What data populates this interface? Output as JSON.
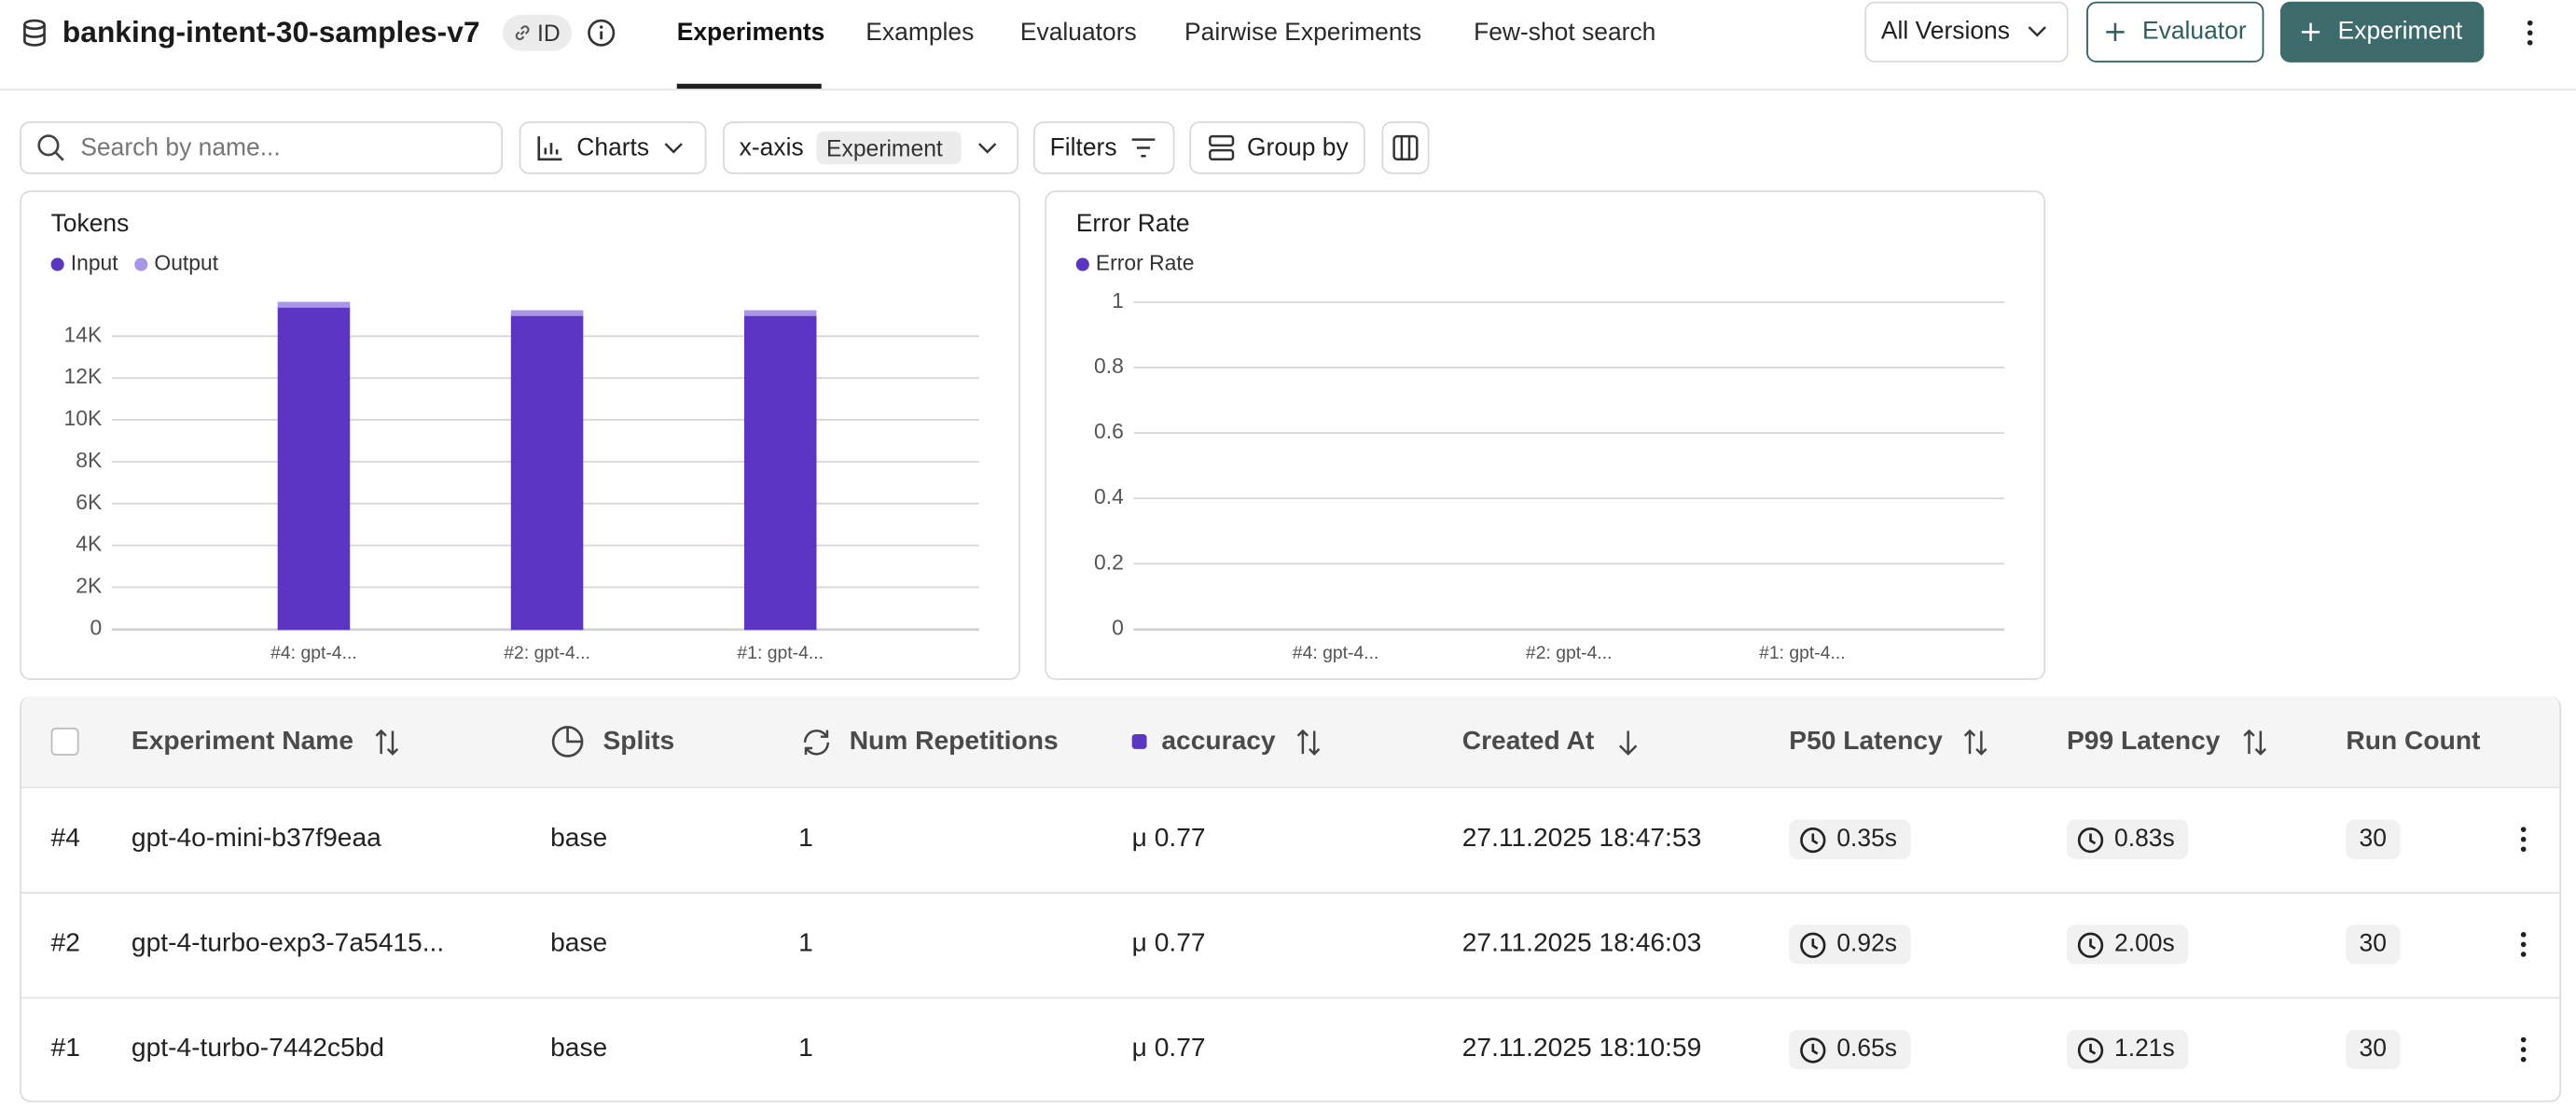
{
  "header": {
    "title": "banking-intent-30-samples-v7",
    "id_badge": "ID",
    "tabs": [
      "Experiments",
      "Examples",
      "Evaluators",
      "Pairwise Experiments",
      "Few-shot search"
    ],
    "version_select": "All Versions",
    "buttons": [
      "Evaluator",
      "Experiment"
    ]
  },
  "toolbar": {
    "search_placeholder": "Search by name...",
    "charts": "Charts",
    "x_axis_label": "x-axis",
    "x_axis_value": "Experiment",
    "filters": "Filters",
    "group_by": "Group by"
  },
  "chart_data": [
    {
      "type": "bar",
      "title": "Tokens",
      "stacked": true,
      "grid": true,
      "categories": [
        "#4: gpt-4...",
        "#2: gpt-4...",
        "#1: gpt-4..."
      ],
      "series": [
        {
          "name": "Input",
          "color": "#5b35c4",
          "values": [
            15400,
            15000,
            15000
          ]
        },
        {
          "name": "Output",
          "color": "#a996e8",
          "values": [
            200,
            200,
            200
          ]
        }
      ],
      "ylim": [
        0,
        15700
      ],
      "yticks": [
        0,
        {
          "value": 2000,
          "label": "2K"
        },
        {
          "value": 4000,
          "label": "4K"
        },
        {
          "value": 6000,
          "label": "6K"
        },
        {
          "value": 8000,
          "label": "8K"
        },
        {
          "value": 10000,
          "label": "10K"
        },
        {
          "value": 12000,
          "label": "12K"
        },
        {
          "value": 14000,
          "label": "14K"
        }
      ]
    },
    {
      "type": "bar",
      "title": "Error Rate",
      "grid": true,
      "categories": [
        "#4: gpt-4...",
        "#2: gpt-4...",
        "#1: gpt-4..."
      ],
      "series": [
        {
          "name": "Error Rate",
          "color": "#5b35c4",
          "values": [
            0,
            0,
            0
          ]
        }
      ],
      "ylim": [
        0,
        1
      ],
      "yticks": [
        0,
        0.2,
        0.4,
        0.6,
        0.8,
        1
      ]
    }
  ],
  "table": {
    "columns": [
      "Experiment Name",
      "Splits",
      "Num Repetitions",
      "accuracy",
      "Created At",
      "P50 Latency",
      "P99 Latency",
      "Run Count"
    ],
    "rows": [
      [
        "#4",
        "gpt-4o-mini-b37f9eaa",
        "base",
        "1",
        "μ 0.77",
        "27.11.2025 18:47:53",
        "0.35s",
        "0.83s",
        "30"
      ],
      [
        "#2",
        "gpt-4-turbo-exp3-7a5415...",
        "base",
        "1",
        "μ 0.77",
        "27.11.2025 18:46:03",
        "0.92s",
        "2.00s",
        "30"
      ],
      [
        "#1",
        "gpt-4-turbo-7442c5bd",
        "base",
        "1",
        "μ 0.77",
        "27.11.2025 18:10:59",
        "0.65s",
        "1.21s",
        "30"
      ]
    ]
  }
}
